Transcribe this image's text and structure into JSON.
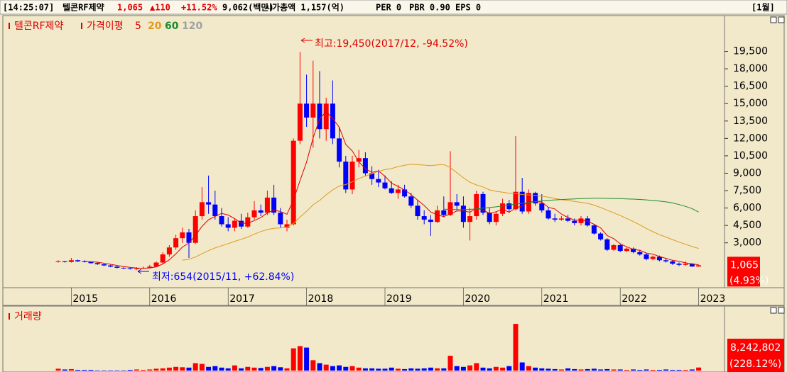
{
  "header": {
    "time": "[14:25:07]",
    "name": "텔콘RF제약",
    "price": "1,065",
    "change": "▲110",
    "change_pct": "+11.52%",
    "trade_value": "9,062(백만)",
    "market_cap": "시가총액 1,157(억)",
    "per": "PER 0",
    "pbr": "PBR 0.90",
    "eps": "EPS 0",
    "period": "[1월]"
  },
  "chart_data": {
    "type": "candlestick",
    "legend_title": "텔콘RF제약",
    "ma_label": "가격이평",
    "volume_title": "거래량",
    "annotations": {
      "high": "최고:19,450(2017/12, -94.52%)",
      "low": "최저:654(2015/11, +62.84%)"
    },
    "up_color": "#ff0000",
    "down_color": "#0000ff",
    "categories": [
      null,
      null,
      "2015",
      null,
      null,
      null,
      null,
      null,
      null,
      null,
      null,
      null,
      null,
      null,
      "2016",
      null,
      null,
      null,
      null,
      null,
      null,
      null,
      null,
      null,
      null,
      null,
      "2017",
      null,
      null,
      null,
      null,
      null,
      null,
      null,
      null,
      null,
      null,
      null,
      "2018",
      null,
      null,
      null,
      null,
      null,
      null,
      null,
      null,
      null,
      null,
      null,
      "2019",
      null,
      null,
      null,
      null,
      null,
      null,
      null,
      null,
      null,
      null,
      null,
      "2020",
      null,
      null,
      null,
      null,
      null,
      null,
      null,
      null,
      null,
      null,
      null,
      "2021",
      null,
      null,
      null,
      null,
      null,
      null,
      null,
      null,
      null,
      null,
      null,
      "2022",
      null,
      null,
      null,
      null,
      null,
      null,
      null,
      null,
      null,
      null,
      null,
      "2023"
    ],
    "open": [
      1400,
      1400,
      1350,
      1500,
      1400,
      1350,
      1250,
      1150,
      1050,
      950,
      850,
      800,
      750,
      800,
      850,
      950,
      1300,
      2000,
      2600,
      3400,
      3900,
      3000,
      5300,
      6500,
      6300,
      5300,
      4600,
      4300,
      4900,
      4400,
      5200,
      5800,
      5600,
      6900,
      5600,
      4300,
      4600,
      11800,
      15000,
      13800,
      15000,
      12800,
      15000,
      12000,
      10000,
      7600,
      10000,
      10300,
      9000,
      8500,
      8200,
      7700,
      7300,
      7600,
      7000,
      6200,
      5300,
      5000,
      4800,
      5800,
      5400,
      6500,
      6200,
      4800,
      5300,
      7200,
      5600,
      4800,
      5500,
      6400,
      5900,
      7400,
      5700,
      7300,
      6400,
      5800,
      5100,
      5000,
      5100,
      4900,
      4700,
      5100,
      4500,
      3800,
      3300,
      2400,
      2800,
      2300,
      2500,
      2200,
      2000,
      1600,
      1800,
      1500,
      1400,
      1200,
      1100,
      1200,
      955
    ],
    "high": [
      1500,
      1450,
      1700,
      1550,
      1500,
      1400,
      1300,
      1200,
      1100,
      1000,
      900,
      850,
      900,
      950,
      1100,
      1400,
      2200,
      2800,
      3700,
      4300,
      4200,
      5800,
      7800,
      8800,
      7500,
      6000,
      5200,
      5100,
      5500,
      5600,
      6600,
      6300,
      7500,
      8000,
      6000,
      5000,
      12000,
      19450,
      17500,
      18700,
      17800,
      15500,
      17000,
      13000,
      10500,
      10500,
      11000,
      10800,
      9600,
      9300,
      8800,
      8300,
      8000,
      8000,
      7300,
      6700,
      5800,
      5400,
      6200,
      7000,
      10900,
      7200,
      7000,
      6000,
      7500,
      7400,
      6000,
      5700,
      6800,
      6700,
      12200,
      8600,
      7600,
      7400,
      7200,
      6100,
      5500,
      5300,
      5400,
      5100,
      5300,
      5300,
      4600,
      3900,
      3400,
      2900,
      2900,
      2600,
      2600,
      2400,
      2100,
      1900,
      1900,
      1700,
      1500,
      1300,
      1400,
      1250,
      1100
    ],
    "low": [
      1300,
      1300,
      1300,
      1350,
      1300,
      1200,
      1100,
      1000,
      900,
      800,
      750,
      700,
      654,
      750,
      800,
      900,
      1200,
      1800,
      2400,
      3000,
      1700,
      2900,
      5000,
      5500,
      5000,
      4400,
      4000,
      4000,
      4200,
      4300,
      5000,
      5300,
      5400,
      5400,
      4300,
      4000,
      4500,
      11500,
      13000,
      11200,
      12000,
      11800,
      11500,
      9500,
      7300,
      7200,
      9500,
      8800,
      8000,
      7800,
      7600,
      7200,
      6800,
      6900,
      6000,
      5000,
      4600,
      3600,
      4700,
      5200,
      5300,
      5800,
      4300,
      3200,
      5000,
      5400,
      4600,
      4500,
      5300,
      5600,
      5800,
      5500,
      5500,
      6200,
      5600,
      5000,
      4800,
      4900,
      4800,
      4500,
      4500,
      4400,
      3700,
      3200,
      2300,
      2300,
      2200,
      2200,
      2100,
      1900,
      1500,
      1500,
      1400,
      1300,
      1100,
      1000,
      1000,
      950,
      950
    ],
    "close": [
      1400,
      1350,
      1500,
      1400,
      1350,
      1250,
      1150,
      1050,
      950,
      850,
      800,
      750,
      800,
      850,
      950,
      1300,
      2000,
      2600,
      3400,
      3900,
      3000,
      5300,
      6500,
      6300,
      5300,
      4600,
      4300,
      4900,
      4400,
      5200,
      5800,
      5600,
      6900,
      5600,
      4600,
      4600,
      11800,
      15000,
      13800,
      15000,
      12800,
      15000,
      12000,
      10000,
      7600,
      10000,
      10300,
      9000,
      8500,
      8200,
      7700,
      7300,
      7600,
      7000,
      6200,
      5300,
      5000,
      4800,
      5800,
      5400,
      6500,
      6200,
      4800,
      5300,
      7200,
      5600,
      4800,
      5500,
      6400,
      5900,
      7400,
      5700,
      7300,
      6400,
      5800,
      5100,
      5000,
      5100,
      4900,
      4700,
      5100,
      4500,
      3800,
      3300,
      2400,
      2800,
      2300,
      2500,
      2200,
      2000,
      1600,
      1800,
      1500,
      1400,
      1200,
      1100,
      1200,
      955,
      1065
    ],
    "volume": [
      5000000,
      3000000,
      4000000,
      2000000,
      2000000,
      2000000,
      1000000,
      1000000,
      1000000,
      1000000,
      1000000,
      2000000,
      3000000,
      2000000,
      3000000,
      5000000,
      6000000,
      8000000,
      10000000,
      9000000,
      8000000,
      20000000,
      18000000,
      10000000,
      12000000,
      8000000,
      6000000,
      14000000,
      6000000,
      10000000,
      8000000,
      7000000,
      10000000,
      12000000,
      9000000,
      6000000,
      60000000,
      66000000,
      62000000,
      28000000,
      20000000,
      16000000,
      12000000,
      14000000,
      10000000,
      12000000,
      8000000,
      6000000,
      6000000,
      5000000,
      5000000,
      8000000,
      5000000,
      4000000,
      6000000,
      5000000,
      6000000,
      8000000,
      6000000,
      6000000,
      40000000,
      12000000,
      10000000,
      14000000,
      20000000,
      8000000,
      6000000,
      10000000,
      8000000,
      12000000,
      126000000,
      22000000,
      12000000,
      8000000,
      6000000,
      5000000,
      4000000,
      3000000,
      6000000,
      4000000,
      3000000,
      4000000,
      5000000,
      3000000,
      4000000,
      3000000,
      3000000,
      2000000,
      3000000,
      2000000,
      3000000,
      2000000,
      2000000,
      3000000,
      2000000,
      2000000,
      2000000,
      3000000,
      8242802
    ],
    "moving_averages": [
      {
        "name": "5",
        "color": "#e00000",
        "values": [
          null,
          null,
          null,
          null,
          1400,
          1370,
          1330,
          1240,
          1150,
          1050,
          960,
          880,
          830,
          810,
          830,
          930,
          1180,
          1540,
          2050,
          2640,
          2980,
          3640,
          4420,
          5000,
          5280,
          5540,
          5400,
          5080,
          4700,
          4680,
          4920,
          5180,
          5580,
          5820,
          5700,
          5460,
          6700,
          8360,
          9960,
          12040,
          13680,
          14320,
          13720,
          12960,
          11480,
          10920,
          9980,
          9380,
          9080,
          9200,
          8740,
          8140,
          7860,
          7560,
          7160,
          6680,
          6220,
          5660,
          5420,
          5260,
          5500,
          5740,
          5740,
          5640,
          6000,
          5820,
          5540,
          5680,
          5900,
          5640,
          6000,
          6180,
          6540,
          6540,
          6520,
          6060,
          5920,
          5480,
          5180,
          4960,
          4960,
          4860,
          4600,
          4280,
          3620,
          3360,
          2920,
          2660,
          2440,
          2360,
          2120,
          2020,
          1820,
          1660,
          1500,
          1400,
          1280,
          1180,
          1110
        ]
      },
      {
        "name": "20",
        "color": "#e09a20",
        "values": [
          null,
          null,
          null,
          null,
          null,
          null,
          null,
          null,
          null,
          null,
          null,
          null,
          null,
          null,
          null,
          null,
          null,
          null,
          null,
          1500,
          1580,
          1780,
          2060,
          2330,
          2560,
          2750,
          2930,
          3130,
          3300,
          3500,
          3750,
          3970,
          4150,
          4260,
          4290,
          4340,
          4680,
          5220,
          5710,
          6280,
          6650,
          7150,
          7560,
          7900,
          8020,
          8260,
          8540,
          8750,
          8960,
          9160,
          9310,
          9400,
          9570,
          9690,
          9780,
          9740,
          9700,
          9660,
          9720,
          9750,
          9480,
          9050,
          8610,
          8220,
          7990,
          7820,
          7560,
          7440,
          7360,
          7270,
          7250,
          7160,
          7130,
          7080,
          7020,
          6940,
          6830,
          6720,
          6650,
          6570,
          6490,
          6400,
          6250,
          6050,
          5810,
          5590,
          5350,
          5100,
          4830,
          4550,
          4240,
          3960,
          3700,
          3500,
          3280,
          3060,
          2870,
          2680,
          2520
        ]
      },
      {
        "name": "60",
        "color": "#1e8a2e",
        "values": [
          null,
          null,
          null,
          null,
          null,
          null,
          null,
          null,
          null,
          null,
          null,
          null,
          null,
          null,
          null,
          null,
          null,
          null,
          null,
          null,
          null,
          null,
          null,
          null,
          null,
          null,
          null,
          null,
          null,
          null,
          null,
          null,
          null,
          null,
          null,
          null,
          null,
          null,
          null,
          null,
          null,
          null,
          null,
          null,
          null,
          null,
          null,
          null,
          null,
          null,
          null,
          null,
          null,
          null,
          null,
          null,
          null,
          null,
          null,
          5900,
          5880,
          5870,
          5860,
          5880,
          5930,
          5990,
          6040,
          6100,
          6180,
          6260,
          6340,
          6410,
          6480,
          6550,
          6610,
          6660,
          6700,
          6730,
          6760,
          6790,
          6810,
          6830,
          6840,
          6840,
          6830,
          6820,
          6810,
          6790,
          6770,
          6740,
          6700,
          6650,
          6600,
          6530,
          6440,
          6300,
          6140,
          5950,
          5650
        ]
      },
      {
        "name": "120",
        "color": "#a0a0a0"
      }
    ],
    "ylim": [
      -500,
      22100
    ],
    "yticks": [
      {
        "value": 3000,
        "label": "3,000"
      },
      {
        "value": 4500,
        "label": "4,500"
      },
      {
        "value": 6000,
        "label": "6,000"
      },
      {
        "value": 7500,
        "label": "7,500"
      },
      {
        "value": 9000,
        "label": "9,000"
      },
      {
        "value": 10500,
        "label": "10,500"
      },
      {
        "value": 12000,
        "label": "12,000"
      },
      {
        "value": 13500,
        "label": "13,500"
      },
      {
        "value": 15000,
        "label": "15,000"
      },
      {
        "value": 16500,
        "label": "16,500"
      },
      {
        "value": 18000,
        "label": "18,000"
      },
      {
        "value": 19500,
        "label": "19,500"
      }
    ],
    "last_price": {
      "value": 1065,
      "label": "1,065"
    },
    "last_price_change": "(4.93%)",
    "volume_ylim": [
      0,
      130000000
    ],
    "last_volume": {
      "value": 8242802,
      "label": "8,242,802"
    },
    "last_volume_change": "(228.12%)"
  }
}
